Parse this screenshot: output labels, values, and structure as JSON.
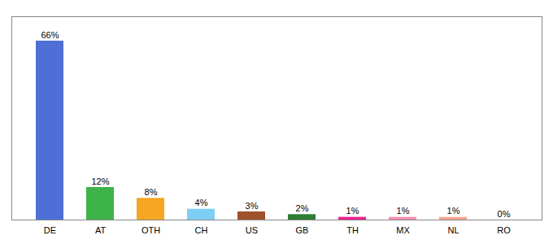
{
  "chart_data": {
    "type": "bar",
    "categories": [
      "DE",
      "AT",
      "OTH",
      "CH",
      "US",
      "GB",
      "TH",
      "MX",
      "NL",
      "RO"
    ],
    "values": [
      66,
      12,
      8,
      4,
      3,
      2,
      1,
      1,
      1,
      0
    ],
    "value_labels": [
      "66%",
      "12%",
      "8%",
      "4%",
      "3%",
      "2%",
      "1%",
      "1%",
      "1%",
      "0%"
    ],
    "colors": [
      "#4d6fd6",
      "#3db34a",
      "#f5a623",
      "#7ecef4",
      "#a0522d",
      "#2e7d32",
      "#f01e8f",
      "#f48fb1",
      "#f4a590",
      "#f4a590"
    ],
    "ylim": [
      0,
      75
    ],
    "data_labels": true,
    "tick_labels": "x",
    "grid": false
  }
}
